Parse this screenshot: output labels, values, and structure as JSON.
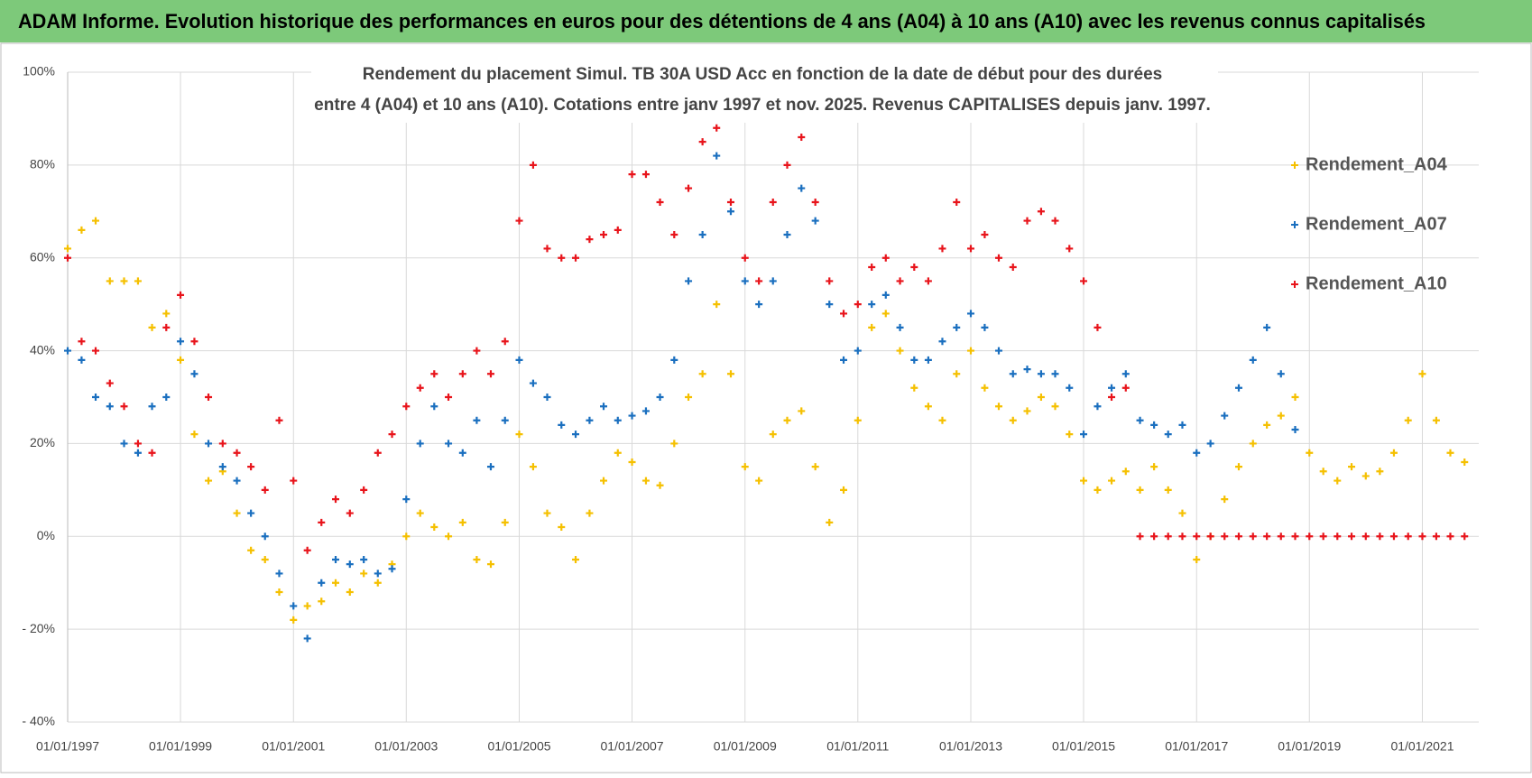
{
  "header": {
    "title": "ADAM Informe. Evolution historique des performances en euros pour des détentions de 4 ans (A04) à 10 ans (A10) avec les revenus connus capitalisés"
  },
  "chart_data": {
    "type": "scatter",
    "title": [
      "Rendement du placement Simul. TB 30A USD Acc en fonction de la date de début pour des durées",
      "entre 4 (A04) et 10 ans (A10). Cotations entre janv 1997 et nov. 2025. Revenus CAPITALISES depuis janv. 1997."
    ],
    "x": [
      "1997-01-01",
      "1997-04-01",
      "1997-07-01",
      "1997-10-01",
      "1998-01-01",
      "1998-04-01",
      "1998-07-01",
      "1998-10-01",
      "1999-01-01",
      "1999-04-01",
      "1999-07-01",
      "1999-10-01",
      "2000-01-01",
      "2000-04-01",
      "2000-07-01",
      "2000-10-01",
      "2001-01-01",
      "2001-04-01",
      "2001-07-01",
      "2001-10-01",
      "2002-01-01",
      "2002-04-01",
      "2002-07-01",
      "2002-10-01",
      "2003-01-01",
      "2003-04-01",
      "2003-07-01",
      "2003-10-01",
      "2004-01-01",
      "2004-04-01",
      "2004-07-01",
      "2004-10-01",
      "2005-01-01",
      "2005-04-01",
      "2005-07-01",
      "2005-10-01",
      "2006-01-01",
      "2006-04-01",
      "2006-07-01",
      "2006-10-01",
      "2007-01-01",
      "2007-04-01",
      "2007-07-01",
      "2007-10-01",
      "2008-01-01",
      "2008-04-01",
      "2008-07-01",
      "2008-10-01",
      "2009-01-01",
      "2009-04-01",
      "2009-07-01",
      "2009-10-01",
      "2010-01-01",
      "2010-04-01",
      "2010-07-01",
      "2010-10-01",
      "2011-01-01",
      "2011-04-01",
      "2011-07-01",
      "2011-10-01",
      "2012-01-01",
      "2012-04-01",
      "2012-07-01",
      "2012-10-01",
      "2013-01-01",
      "2013-04-01",
      "2013-07-01",
      "2013-10-01",
      "2014-01-01",
      "2014-04-01",
      "2014-07-01",
      "2014-10-01",
      "2015-01-01",
      "2015-04-01",
      "2015-07-01",
      "2015-10-01",
      "2016-01-01",
      "2016-04-01",
      "2016-07-01",
      "2016-10-01",
      "2017-01-01",
      "2017-04-01",
      "2017-07-01",
      "2017-10-01",
      "2018-01-01",
      "2018-04-01",
      "2018-07-01",
      "2018-10-01",
      "2019-01-01",
      "2019-04-01",
      "2019-07-01",
      "2019-10-01",
      "2020-01-01",
      "2020-04-01",
      "2020-07-01",
      "2020-10-01",
      "2021-01-01",
      "2021-04-01",
      "2021-07-01",
      "2021-10-01"
    ],
    "series": [
      {
        "name": "Rendement_A04",
        "color": "#f5c000",
        "values": [
          62,
          66,
          68,
          55,
          55,
          55,
          45,
          48,
          38,
          22,
          12,
          14,
          5,
          -3,
          -5,
          -12,
          -18,
          -15,
          -14,
          -10,
          -12,
          -8,
          -10,
          -6,
          0,
          5,
          2,
          0,
          3,
          -5,
          -6,
          3,
          22,
          15,
          5,
          2,
          -5,
          5,
          12,
          18,
          16,
          12,
          11,
          20,
          30,
          35,
          50,
          35,
          15,
          12,
          22,
          25,
          27,
          15,
          3,
          10,
          25,
          45,
          48,
          40,
          32,
          28,
          25,
          35,
          40,
          32,
          28,
          25,
          27,
          30,
          28,
          22,
          12,
          10,
          12,
          14,
          10,
          15,
          10,
          5,
          -5,
          0,
          8,
          15,
          20,
          24,
          26,
          30,
          18,
          14,
          12,
          15,
          13,
          14,
          18,
          25,
          35,
          25,
          18,
          16
        ]
      },
      {
        "name": "Rendement_A07",
        "color": "#1a6fbf",
        "values": [
          40,
          38,
          30,
          28,
          20,
          18,
          28,
          30,
          42,
          35,
          20,
          15,
          12,
          5,
          0,
          -8,
          -15,
          -22,
          -10,
          -5,
          -6,
          -5,
          -8,
          -7,
          8,
          20,
          28,
          20,
          18,
          25,
          15,
          25,
          38,
          33,
          30,
          24,
          22,
          25,
          28,
          25,
          26,
          27,
          30,
          38,
          55,
          65,
          82,
          70,
          55,
          50,
          55,
          65,
          75,
          68,
          50,
          38,
          40,
          50,
          52,
          45,
          38,
          38,
          42,
          45,
          48,
          45,
          40,
          35,
          36,
          35,
          35,
          32,
          22,
          28,
          32,
          35,
          25,
          24,
          22,
          24,
          18,
          20,
          26,
          32,
          38,
          45,
          35,
          23,
          null,
          null,
          null,
          null,
          null,
          null,
          null,
          null,
          null,
          null,
          null,
          null
        ]
      },
      {
        "name": "Rendement_A10",
        "color": "#e8141b",
        "values": [
          60,
          42,
          40,
          33,
          28,
          20,
          18,
          45,
          52,
          42,
          30,
          20,
          18,
          15,
          10,
          25,
          12,
          -3,
          3,
          8,
          5,
          10,
          18,
          22,
          28,
          32,
          35,
          30,
          35,
          40,
          35,
          42,
          68,
          80,
          62,
          60,
          60,
          64,
          65,
          66,
          78,
          78,
          72,
          65,
          75,
          85,
          88,
          72,
          60,
          55,
          72,
          80,
          86,
          72,
          55,
          48,
          50,
          58,
          60,
          55,
          58,
          55,
          62,
          72,
          62,
          65,
          60,
          58,
          68,
          70,
          68,
          62,
          55,
          45,
          30,
          32,
          0,
          0,
          0,
          0,
          0,
          0,
          0,
          0,
          0,
          0,
          0,
          0,
          0,
          0,
          0,
          0,
          0,
          0,
          0,
          0,
          0,
          0,
          0,
          0
        ]
      }
    ],
    "xlim": [
      "1997-01-01",
      "2022-01-01"
    ],
    "xticks": [
      {
        "value": "1997-01-01",
        "label": "01/01/1997"
      },
      {
        "value": "1999-01-01",
        "label": "01/01/1999"
      },
      {
        "value": "2001-01-01",
        "label": "01/01/2001"
      },
      {
        "value": "2003-01-01",
        "label": "01/01/2003"
      },
      {
        "value": "2005-01-01",
        "label": "01/01/2005"
      },
      {
        "value": "2007-01-01",
        "label": "01/01/2007"
      },
      {
        "value": "2009-01-01",
        "label": "01/01/2009"
      },
      {
        "value": "2011-01-01",
        "label": "01/01/2011"
      },
      {
        "value": "2013-01-01",
        "label": "01/01/2013"
      },
      {
        "value": "2015-01-01",
        "label": "01/01/2015"
      },
      {
        "value": "2017-01-01",
        "label": "01/01/2017"
      },
      {
        "value": "2019-01-01",
        "label": "01/01/2019"
      },
      {
        "value": "2021-01-01",
        "label": "01/01/2021"
      }
    ],
    "ylim": [
      -40,
      100
    ],
    "yticks": [
      {
        "value": -40,
        "label": "- 40%"
      },
      {
        "value": -20,
        "label": "- 20%"
      },
      {
        "value": 0,
        "label": "0%"
      },
      {
        "value": 20,
        "label": "20%"
      },
      {
        "value": 40,
        "label": "40%"
      },
      {
        "value": 60,
        "label": "60%"
      },
      {
        "value": 80,
        "label": "80%"
      },
      {
        "value": 100,
        "label": "100%"
      }
    ],
    "grid": true,
    "legend": "right"
  }
}
